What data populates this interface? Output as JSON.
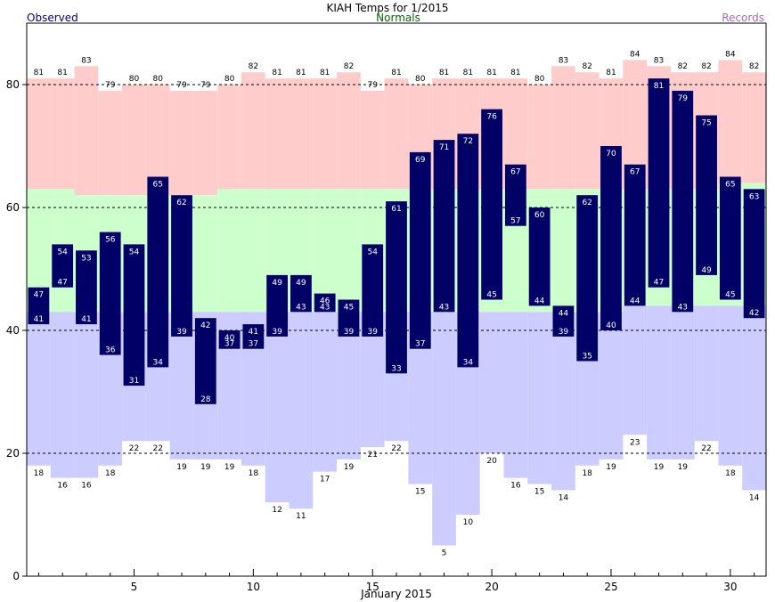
{
  "chart_data": {
    "type": "bar",
    "title": "KIAH Temps for 1/2015",
    "xlabel": "January 2015",
    "ylabel": "",
    "legend": {
      "observed": "Observed",
      "normals": "Normals",
      "records": "Records"
    },
    "colors": {
      "observed_bar": "#000066",
      "observed_text": "#000080",
      "normals_text": "#006400",
      "records_text": "#b266b2",
      "record_high_fill": "#ffcccc",
      "record_low_fill": "#ccccff",
      "normal_fill": "#ccffcc"
    },
    "x": [
      1,
      2,
      3,
      4,
      5,
      6,
      7,
      8,
      9,
      10,
      11,
      12,
      13,
      14,
      15,
      16,
      17,
      18,
      19,
      20,
      21,
      22,
      23,
      24,
      25,
      26,
      27,
      28,
      29,
      30,
      31
    ],
    "x_ticks": [
      5,
      10,
      15,
      20,
      25,
      30
    ],
    "xlim": [
      0.5,
      31.5
    ],
    "ylim": [
      0,
      90
    ],
    "y_ticks": [
      0,
      20,
      40,
      60,
      80
    ],
    "gridlines": [
      20,
      40,
      60,
      80
    ],
    "grid": true,
    "observed_high": [
      47,
      54,
      53,
      56,
      54,
      65,
      62,
      42,
      40,
      41,
      49,
      49,
      46,
      45,
      54,
      61,
      69,
      71,
      72,
      76,
      67,
      60,
      44,
      62,
      70,
      67,
      81,
      79,
      75,
      65,
      63
    ],
    "observed_low": [
      41,
      47,
      41,
      36,
      31,
      34,
      39,
      28,
      37,
      37,
      39,
      43,
      43,
      39,
      39,
      33,
      37,
      43,
      34,
      45,
      57,
      44,
      39,
      35,
      40,
      44,
      47,
      43,
      49,
      45,
      42
    ],
    "record_high": [
      81,
      81,
      83,
      79,
      80,
      80,
      79,
      79,
      80,
      82,
      81,
      81,
      81,
      82,
      79,
      81,
      80,
      81,
      81,
      81,
      81,
      80,
      83,
      82,
      81,
      84,
      83,
      82,
      82,
      84,
      82
    ],
    "record_low": [
      18,
      16,
      16,
      18,
      22,
      22,
      19,
      19,
      19,
      18,
      12,
      11,
      17,
      19,
      21,
      22,
      15,
      5,
      10,
      20,
      16,
      15,
      14,
      18,
      19,
      23,
      19,
      19,
      22,
      18,
      14
    ],
    "normal_high": [
      63,
      63,
      62,
      62,
      62,
      62,
      62,
      62,
      63,
      63,
      63,
      63,
      63,
      63,
      63,
      63,
      63,
      63,
      63,
      63,
      63,
      63,
      63,
      63,
      63,
      63,
      63,
      63,
      63,
      64,
      64
    ],
    "normal_low": [
      43,
      43,
      43,
      43,
      43,
      43,
      43,
      43,
      43,
      43,
      43,
      43,
      43,
      43,
      43,
      43,
      43,
      43,
      43,
      43,
      43,
      43,
      43,
      43,
      43,
      44,
      44,
      44,
      44,
      44,
      44
    ]
  }
}
